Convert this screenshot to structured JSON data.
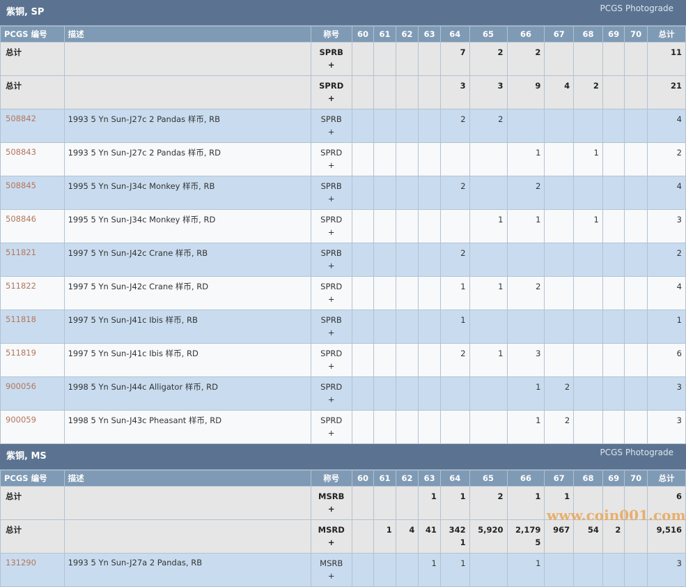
{
  "watermark": "www.coin001.com",
  "sections": [
    {
      "title": "紫铜, SP",
      "photograde": "PCGS Photograde",
      "headers": [
        "PCGS 编号",
        "描述",
        "称号",
        "60",
        "61",
        "62",
        "63",
        "64",
        "65",
        "66",
        "67",
        "68",
        "69",
        "70",
        "总计"
      ],
      "rows": [
        {
          "pcgs": "总计",
          "desc": "",
          "des": "SPRB\n+",
          "g": [
            "",
            "",
            "",
            "",
            "7",
            "2",
            "2",
            "",
            "",
            "",
            ""
          ],
          "total": "11",
          "type": "total"
        },
        {
          "pcgs": "总计",
          "desc": "",
          "des": "SPRD\n+",
          "g": [
            "",
            "",
            "",
            "",
            "3",
            "3",
            "9",
            "4",
            "2",
            "",
            ""
          ],
          "total": "21",
          "type": "total"
        },
        {
          "pcgs": "508842",
          "desc": "1993 5 Yn Sun-J27c 2 Pandas 样币, RB",
          "des": "SPRB\n+",
          "g": [
            "",
            "",
            "",
            "",
            "2",
            "2",
            "",
            "",
            "",
            "",
            ""
          ],
          "total": "4",
          "type": "blue"
        },
        {
          "pcgs": "508843",
          "desc": "1993 5 Yn Sun-J27c 2 Pandas 样币, RD",
          "des": "SPRD\n+",
          "g": [
            "",
            "",
            "",
            "",
            "",
            "",
            "1",
            "",
            "1",
            "",
            ""
          ],
          "total": "2",
          "type": "white"
        },
        {
          "pcgs": "508845",
          "desc": "1995 5 Yn Sun-J34c Monkey 样币, RB",
          "des": "SPRB\n+",
          "g": [
            "",
            "",
            "",
            "",
            "2",
            "",
            "2",
            "",
            "",
            "",
            ""
          ],
          "total": "4",
          "type": "blue"
        },
        {
          "pcgs": "508846",
          "desc": "1995 5 Yn Sun-J34c Monkey 样币, RD",
          "des": "SPRD\n+",
          "g": [
            "",
            "",
            "",
            "",
            "",
            "1",
            "1",
            "",
            "1",
            "",
            ""
          ],
          "total": "3",
          "type": "white"
        },
        {
          "pcgs": "511821",
          "desc": "1997 5 Yn Sun-J42c Crane 样币, RB",
          "des": "SPRB\n+",
          "g": [
            "",
            "",
            "",
            "",
            "2",
            "",
            "",
            "",
            "",
            "",
            ""
          ],
          "total": "2",
          "type": "blue"
        },
        {
          "pcgs": "511822",
          "desc": "1997 5 Yn Sun-J42c Crane 样币, RD",
          "des": "SPRD\n+",
          "g": [
            "",
            "",
            "",
            "",
            "1",
            "1",
            "2",
            "",
            "",
            "",
            ""
          ],
          "total": "4",
          "type": "white"
        },
        {
          "pcgs": "511818",
          "desc": "1997 5 Yn Sun-J41c Ibis 样币, RB",
          "des": "SPRB\n+",
          "g": [
            "",
            "",
            "",
            "",
            "1",
            "",
            "",
            "",
            "",
            "",
            ""
          ],
          "total": "1",
          "type": "blue"
        },
        {
          "pcgs": "511819",
          "desc": "1997 5 Yn Sun-J41c Ibis 样币, RD",
          "des": "SPRD\n+",
          "g": [
            "",
            "",
            "",
            "",
            "2",
            "1",
            "3",
            "",
            "",
            "",
            ""
          ],
          "total": "6",
          "type": "white"
        },
        {
          "pcgs": "900056",
          "desc": "1998 5 Yn Sun-J44c Alligator 样币, RD",
          "des": "SPRD\n+",
          "g": [
            "",
            "",
            "",
            "",
            "",
            "",
            "1",
            "2",
            "",
            "",
            ""
          ],
          "total": "3",
          "type": "blue"
        },
        {
          "pcgs": "900059",
          "desc": "1998 5 Yn Sun-J43c Pheasant 样币, RD",
          "des": "SPRD\n+",
          "g": [
            "",
            "",
            "",
            "",
            "",
            "",
            "1",
            "2",
            "",
            "",
            ""
          ],
          "total": "3",
          "type": "white"
        }
      ]
    },
    {
      "title": "紫铜, MS",
      "photograde": "PCGS Photograde",
      "headers": [
        "PCGS 编号",
        "描述",
        "称号",
        "60",
        "61",
        "62",
        "63",
        "64",
        "65",
        "66",
        "67",
        "68",
        "69",
        "70",
        "总计"
      ],
      "rows": [
        {
          "pcgs": "总计",
          "desc": "",
          "des": "MSRB\n+",
          "g": [
            "",
            "",
            "",
            "1",
            "1",
            "2",
            "1",
            "1",
            "",
            "",
            ""
          ],
          "total": "6",
          "type": "total"
        },
        {
          "pcgs": "总计",
          "desc": "",
          "des": "MSRD\n+",
          "g": [
            "",
            "1",
            "4",
            "41",
            "342\n1",
            "5,920",
            "2,179\n5",
            "967",
            "54",
            "2",
            ""
          ],
          "total": "9,516",
          "type": "total"
        },
        {
          "pcgs": "131290",
          "desc": "1993 5 Yn Sun-J27a 2 Pandas, RB",
          "des": "MSRB\n+",
          "g": [
            "",
            "",
            "",
            "1",
            "1",
            "",
            "1",
            "",
            "",
            "",
            ""
          ],
          "total": "3",
          "type": "blue"
        }
      ]
    }
  ]
}
